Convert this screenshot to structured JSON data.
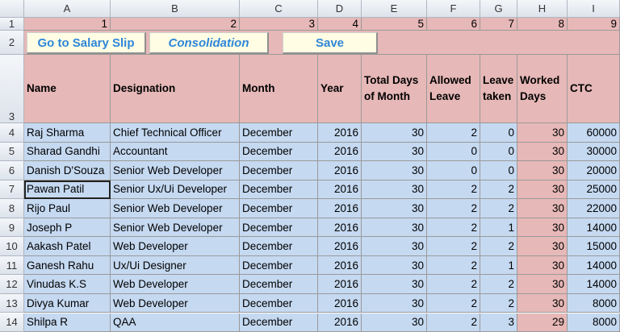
{
  "column_letters": [
    "A",
    "B",
    "C",
    "D",
    "E",
    "F",
    "G",
    "H",
    "I"
  ],
  "row_numbers": [
    "1",
    "2",
    "3",
    "4",
    "5",
    "6",
    "7",
    "8",
    "9",
    "10",
    "11",
    "12",
    "13",
    "14"
  ],
  "row1": [
    1,
    2,
    3,
    4,
    5,
    6,
    7,
    8,
    9
  ],
  "buttons": [
    "Go to Salary Slip",
    "Consolidation",
    "Save"
  ],
  "table": {
    "headers": [
      "Name",
      "Designation",
      "Month",
      "Year",
      "Total Days of Month",
      "Allowed Leave",
      "Leave taken",
      "Worked Days",
      "CTC"
    ],
    "rows": [
      [
        "Raj Sharma",
        "Chief Technical Officer",
        "December",
        2016,
        30,
        2,
        0,
        30,
        60000
      ],
      [
        "Sharad Gandhi",
        "Accountant",
        "December",
        2016,
        30,
        0,
        0,
        30,
        30000
      ],
      [
        "Danish D'Souza",
        "Senior Web Developer",
        "December",
        2016,
        30,
        0,
        0,
        30,
        20000
      ],
      [
        "Pawan Patil",
        "Senior Ux/Ui Developer",
        "December",
        2016,
        30,
        2,
        2,
        30,
        25000
      ],
      [
        "Rijo Paul",
        "Senior Web Developer",
        "December",
        2016,
        30,
        2,
        2,
        30,
        22000
      ],
      [
        "Joseph P",
        "Senior Web Developer",
        "December",
        2016,
        30,
        2,
        1,
        30,
        14000
      ],
      [
        "Aakash Patel",
        "Web Developer",
        "December",
        2016,
        30,
        2,
        2,
        30,
        15000
      ],
      [
        "Ganesh Rahu",
        "Ux/Ui Designer",
        "December",
        2016,
        30,
        2,
        1,
        30,
        14000
      ],
      [
        "Vinudas K.S",
        "Web Developer",
        "December",
        2016,
        30,
        2,
        2,
        30,
        14000
      ],
      [
        "Divya Kumar",
        "Web Developer",
        "December",
        2016,
        30,
        2,
        2,
        30,
        8000
      ],
      [
        "Shilpa R",
        "QAA",
        "December",
        2016,
        30,
        2,
        3,
        29,
        8000
      ]
    ]
  }
}
